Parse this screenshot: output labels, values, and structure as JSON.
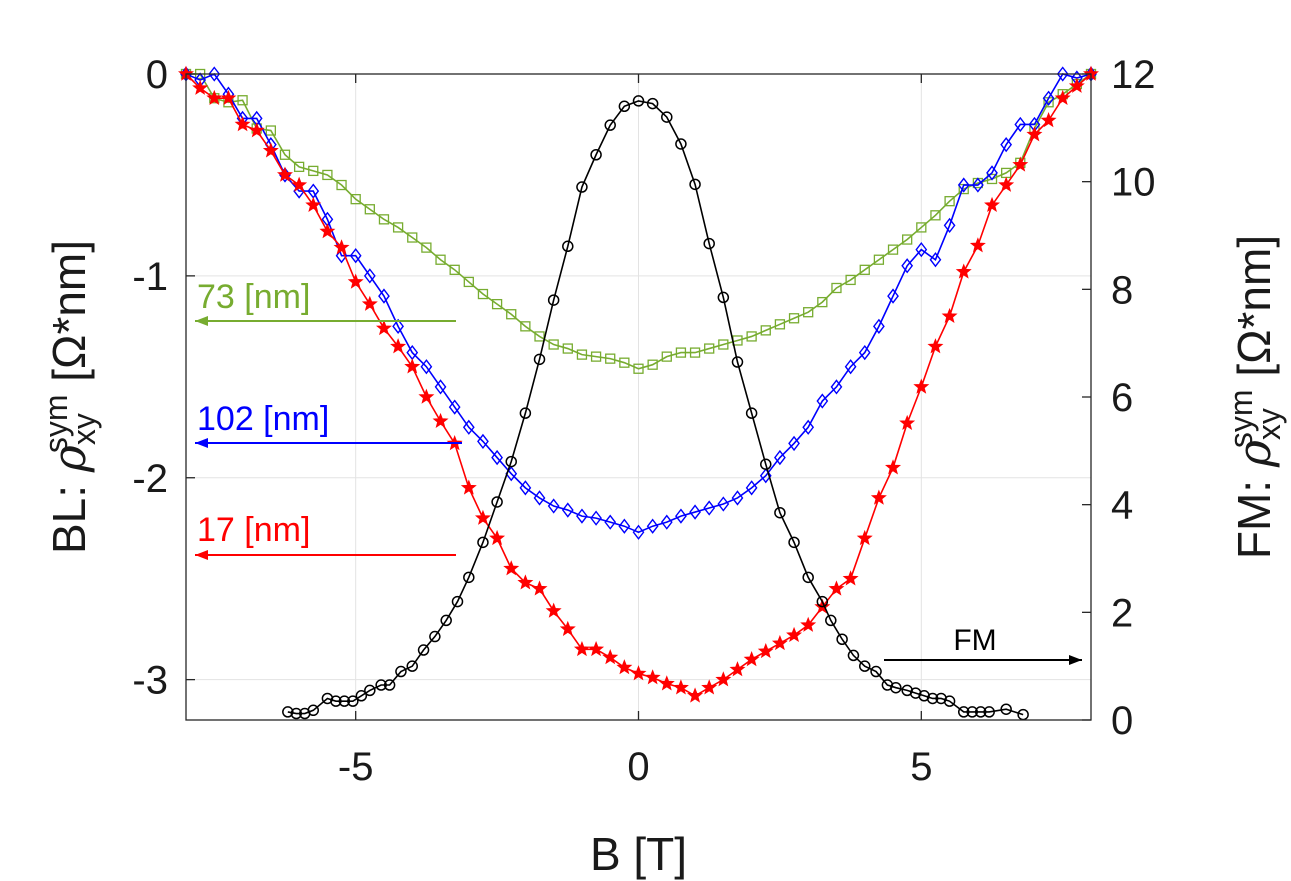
{
  "chart_data": {
    "type": "line",
    "xlabel": "B [T]",
    "ylabel_left": {
      "prefix": "BL: ",
      "rho": "ρ",
      "sub": "xy",
      "sup": "sym",
      "unit": " [Ω*nm]"
    },
    "ylabel_right": {
      "prefix": "FM: ",
      "rho": "ρ",
      "sub": "xy",
      "sup": "sym",
      "unit": " [Ω*nm]"
    },
    "xlim": [
      -8,
      8
    ],
    "ylim_left": [
      -3.2,
      0
    ],
    "ylim_right": [
      0,
      12
    ],
    "x_ticks": [
      -5,
      0,
      5
    ],
    "x_tick_labels": [
      "-5",
      "0",
      "5"
    ],
    "y_left_ticks": [
      0,
      -1,
      -2,
      -3
    ],
    "y_left_tick_labels": [
      "0",
      "-1",
      "-2",
      "-3"
    ],
    "y_right_ticks": [
      0,
      2,
      4,
      6,
      8,
      10,
      12
    ],
    "y_right_tick_labels": [
      "0",
      "2",
      "4",
      "6",
      "8",
      "10",
      "12"
    ],
    "grid": true,
    "colors": {
      "green": "#77ac30",
      "blue": "#0000ff",
      "red": "#ff0000",
      "black": "#000000"
    },
    "annotations": [
      {
        "text": "73 [nm]",
        "series": "73 nm",
        "direction": "left"
      },
      {
        "text": "102 [nm]",
        "series": "102 nm",
        "direction": "left"
      },
      {
        "text": "17 [nm]",
        "series": "17 nm",
        "direction": "left"
      },
      {
        "text": "FM",
        "series": "FM",
        "direction": "right"
      }
    ],
    "series": [
      {
        "name": "73 nm",
        "axis": "left",
        "color": "#77ac30",
        "marker": "square",
        "x": [
          -8.0,
          -7.75,
          -7.5,
          -7.25,
          -7.0,
          -6.75,
          -6.5,
          -6.25,
          -6.0,
          -5.75,
          -5.5,
          -5.25,
          -5.0,
          -4.75,
          -4.5,
          -4.25,
          -4.0,
          -3.75,
          -3.5,
          -3.25,
          -3.0,
          -2.75,
          -2.5,
          -2.25,
          -2.0,
          -1.75,
          -1.5,
          -1.25,
          -1.0,
          -0.75,
          -0.5,
          -0.25,
          0.0,
          0.25,
          0.5,
          0.75,
          1.0,
          1.25,
          1.5,
          1.75,
          2.0,
          2.25,
          2.5,
          2.75,
          3.0,
          3.25,
          3.5,
          3.75,
          4.0,
          4.25,
          4.5,
          4.75,
          5.0,
          5.25,
          5.5,
          5.75,
          6.0,
          6.25,
          6.5,
          6.75,
          7.0,
          7.25,
          7.5,
          7.75,
          8.0
        ],
        "y": [
          0.0,
          0.0,
          -0.12,
          -0.14,
          -0.13,
          -0.27,
          -0.28,
          -0.4,
          -0.46,
          -0.48,
          -0.5,
          -0.55,
          -0.62,
          -0.67,
          -0.72,
          -0.76,
          -0.81,
          -0.86,
          -0.92,
          -0.97,
          -1.03,
          -1.09,
          -1.14,
          -1.19,
          -1.25,
          -1.3,
          -1.34,
          -1.36,
          -1.39,
          -1.4,
          -1.41,
          -1.43,
          -1.46,
          -1.44,
          -1.4,
          -1.38,
          -1.38,
          -1.36,
          -1.34,
          -1.32,
          -1.3,
          -1.27,
          -1.24,
          -1.21,
          -1.18,
          -1.13,
          -1.06,
          -1.02,
          -0.97,
          -0.92,
          -0.87,
          -0.82,
          -0.76,
          -0.7,
          -0.63,
          -0.57,
          -0.54,
          -0.52,
          -0.49,
          -0.44,
          -0.27,
          -0.14,
          -0.1,
          -0.05,
          0.0
        ]
      },
      {
        "name": "102 nm",
        "axis": "left",
        "color": "#0000ff",
        "marker": "diamond",
        "x": [
          -8.0,
          -7.75,
          -7.5,
          -7.25,
          -7.0,
          -6.75,
          -6.5,
          -6.25,
          -6.0,
          -5.75,
          -5.5,
          -5.25,
          -5.0,
          -4.75,
          -4.5,
          -4.25,
          -4.0,
          -3.75,
          -3.5,
          -3.25,
          -3.0,
          -2.75,
          -2.5,
          -2.25,
          -2.0,
          -1.75,
          -1.5,
          -1.25,
          -1.0,
          -0.75,
          -0.5,
          -0.25,
          0.0,
          0.25,
          0.5,
          0.75,
          1.0,
          1.25,
          1.5,
          1.75,
          2.0,
          2.25,
          2.5,
          2.75,
          3.0,
          3.25,
          3.5,
          3.75,
          4.0,
          4.25,
          4.5,
          4.75,
          5.0,
          5.25,
          5.5,
          5.75,
          6.0,
          6.25,
          6.5,
          6.75,
          7.0,
          7.25,
          7.5,
          7.75,
          8.0
        ],
        "y": [
          0.0,
          -0.03,
          0.0,
          -0.1,
          -0.22,
          -0.22,
          -0.35,
          -0.5,
          -0.58,
          -0.58,
          -0.72,
          -0.9,
          -0.9,
          -1.0,
          -1.1,
          -1.25,
          -1.38,
          -1.45,
          -1.55,
          -1.65,
          -1.75,
          -1.82,
          -1.9,
          -1.98,
          -2.05,
          -2.1,
          -2.14,
          -2.16,
          -2.19,
          -2.2,
          -2.22,
          -2.24,
          -2.27,
          -2.24,
          -2.22,
          -2.19,
          -2.17,
          -2.15,
          -2.13,
          -2.1,
          -2.05,
          -1.99,
          -1.9,
          -1.83,
          -1.75,
          -1.62,
          -1.55,
          -1.45,
          -1.38,
          -1.25,
          -1.1,
          -0.95,
          -0.87,
          -0.92,
          -0.75,
          -0.55,
          -0.55,
          -0.49,
          -0.35,
          -0.25,
          -0.25,
          -0.12,
          0.0,
          -0.02,
          0.0
        ]
      },
      {
        "name": "17 nm",
        "axis": "left",
        "color": "#ff0000",
        "marker": "star",
        "x": [
          -8.0,
          -7.75,
          -7.5,
          -7.25,
          -7.0,
          -6.75,
          -6.5,
          -6.25,
          -6.0,
          -5.75,
          -5.5,
          -5.25,
          -5.0,
          -4.75,
          -4.5,
          -4.25,
          -4.0,
          -3.75,
          -3.5,
          -3.25,
          -3.0,
          -2.75,
          -2.5,
          -2.25,
          -2.0,
          -1.75,
          -1.5,
          -1.25,
          -1.0,
          -0.75,
          -0.5,
          -0.25,
          0.0,
          0.25,
          0.5,
          0.75,
          1.0,
          1.25,
          1.5,
          1.75,
          2.0,
          2.25,
          2.5,
          2.75,
          3.0,
          3.25,
          3.5,
          3.75,
          4.0,
          4.25,
          4.5,
          4.75,
          5.0,
          5.25,
          5.5,
          5.75,
          6.0,
          6.25,
          6.5,
          6.75,
          7.0,
          7.25,
          7.5,
          7.75,
          8.0
        ],
        "y": [
          0.0,
          -0.07,
          -0.12,
          -0.12,
          -0.25,
          -0.28,
          -0.38,
          -0.5,
          -0.55,
          -0.65,
          -0.78,
          -0.86,
          -1.03,
          -1.14,
          -1.26,
          -1.35,
          -1.45,
          -1.6,
          -1.72,
          -1.83,
          -2.05,
          -2.2,
          -2.3,
          -2.45,
          -2.52,
          -2.55,
          -2.66,
          -2.75,
          -2.85,
          -2.85,
          -2.89,
          -2.94,
          -2.97,
          -2.99,
          -3.02,
          -3.04,
          -3.08,
          -3.04,
          -3.0,
          -2.95,
          -2.9,
          -2.86,
          -2.82,
          -2.78,
          -2.73,
          -2.64,
          -2.55,
          -2.5,
          -2.3,
          -2.1,
          -1.95,
          -1.73,
          -1.55,
          -1.35,
          -1.2,
          -0.98,
          -0.85,
          -0.65,
          -0.55,
          -0.45,
          -0.3,
          -0.23,
          -0.12,
          -0.06,
          0.0
        ]
      },
      {
        "name": "FM",
        "axis": "right",
        "color": "#000000",
        "marker": "circle",
        "x": [
          -6.2,
          -6.05,
          -5.9,
          -5.75,
          -5.5,
          -5.35,
          -5.2,
          -5.05,
          -4.9,
          -4.75,
          -4.55,
          -4.4,
          -4.2,
          -4.0,
          -3.8,
          -3.6,
          -3.4,
          -3.2,
          -3.0,
          -2.75,
          -2.5,
          -2.25,
          -2.0,
          -1.75,
          -1.5,
          -1.25,
          -1.0,
          -0.75,
          -0.5,
          -0.25,
          0.0,
          0.25,
          0.5,
          0.75,
          1.0,
          1.25,
          1.5,
          1.75,
          2.0,
          2.25,
          2.5,
          2.75,
          3.0,
          3.25,
          3.4,
          3.6,
          3.8,
          4.0,
          4.2,
          4.4,
          4.55,
          4.75,
          4.9,
          5.05,
          5.2,
          5.35,
          5.5,
          5.75,
          5.9,
          6.05,
          6.2,
          6.5,
          6.8
        ],
        "y": [
          0.15,
          0.12,
          0.12,
          0.18,
          0.4,
          0.35,
          0.35,
          0.35,
          0.45,
          0.55,
          0.65,
          0.65,
          0.9,
          1.0,
          1.3,
          1.55,
          1.85,
          2.2,
          2.65,
          3.3,
          4.05,
          4.8,
          5.7,
          6.7,
          7.8,
          8.8,
          9.9,
          10.5,
          11.05,
          11.4,
          11.5,
          11.45,
          11.2,
          10.7,
          9.95,
          8.85,
          7.85,
          6.65,
          5.7,
          4.75,
          3.85,
          3.3,
          2.65,
          2.2,
          1.85,
          1.5,
          1.2,
          1.0,
          0.9,
          0.65,
          0.6,
          0.55,
          0.5,
          0.45,
          0.4,
          0.4,
          0.35,
          0.15,
          0.15,
          0.15,
          0.15,
          0.2,
          0.1
        ]
      }
    ]
  }
}
